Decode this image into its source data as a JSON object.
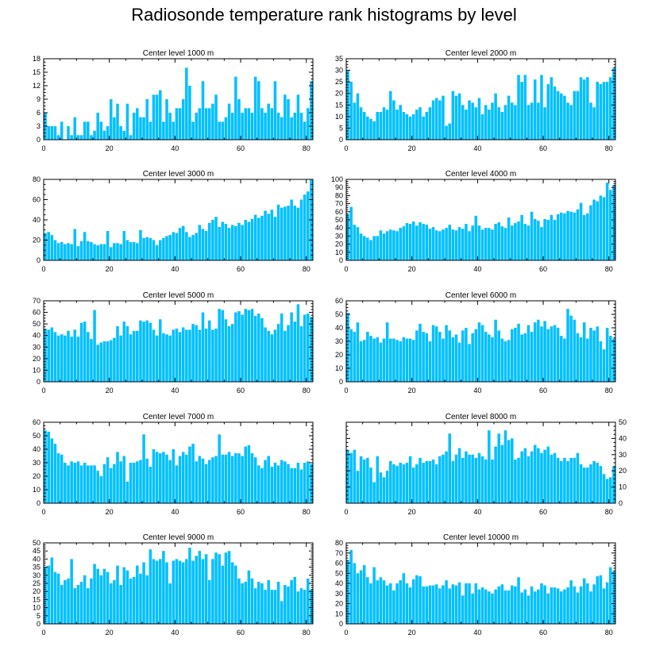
{
  "title": "Radiosonde temperature rank histograms by level",
  "colors": {
    "bar": "#00c0ff",
    "axis": "#000000"
  },
  "chart_data": [
    {
      "type": "bar",
      "title": "Center level 1000 m",
      "xlim": [
        0,
        82
      ],
      "ylim": [
        0,
        18
      ],
      "xticks": [
        0,
        20,
        40,
        60,
        80
      ],
      "yticks": [
        0,
        3,
        6,
        9,
        12,
        15,
        18
      ],
      "ytick_side": "left",
      "values": [
        6,
        3,
        3,
        3,
        1,
        4,
        0,
        3,
        1,
        5,
        1,
        1,
        4,
        4,
        1,
        2,
        6,
        4,
        2,
        3,
        9,
        5,
        8,
        3,
        2,
        8,
        1,
        6,
        7,
        5,
        5,
        9,
        4,
        10,
        10,
        11,
        4,
        9,
        6,
        4,
        7,
        7,
        9,
        16,
        12,
        4,
        6,
        7,
        13,
        7,
        7,
        8,
        10,
        4,
        4,
        5,
        8,
        6,
        14,
        9,
        6,
        7,
        7,
        6,
        14,
        13,
        7,
        6,
        8,
        7,
        13,
        6,
        5,
        10,
        9,
        5,
        6,
        10,
        6,
        4,
        7,
        13
      ]
    },
    {
      "type": "bar",
      "title": "Center level 2000 m",
      "xlim": [
        0,
        82
      ],
      "ylim": [
        0,
        35
      ],
      "xticks": [
        0,
        20,
        40,
        60,
        80
      ],
      "yticks": [
        0,
        5,
        10,
        15,
        20,
        25,
        30,
        35
      ],
      "ytick_side": "left",
      "values": [
        30,
        25,
        16,
        20,
        14,
        12,
        10,
        9,
        8,
        12,
        12,
        14,
        13,
        21,
        17,
        13,
        15,
        12,
        11,
        10,
        11,
        13,
        14,
        10,
        12,
        14,
        17,
        18,
        17,
        19,
        6,
        7,
        21,
        19,
        20,
        15,
        13,
        17,
        16,
        14,
        18,
        11,
        15,
        13,
        16,
        20,
        14,
        12,
        15,
        19,
        16,
        15,
        28,
        25,
        28,
        15,
        16,
        26,
        16,
        28,
        14,
        24,
        27,
        23,
        21,
        20,
        19,
        16,
        15,
        21,
        21,
        27,
        26,
        27,
        16,
        14,
        25,
        24,
        25,
        25,
        27,
        31
      ]
    },
    {
      "type": "bar",
      "title": "Center level 3000 m",
      "xlim": [
        0,
        82
      ],
      "ylim": [
        0,
        80
      ],
      "xticks": [
        0,
        20,
        40,
        60,
        80
      ],
      "yticks": [
        0,
        20,
        40,
        60,
        80
      ],
      "ytick_side": "left",
      "values": [
        27,
        28,
        25,
        20,
        17,
        18,
        16,
        17,
        16,
        31,
        14,
        19,
        28,
        19,
        18,
        16,
        15,
        16,
        16,
        29,
        13,
        17,
        17,
        16,
        29,
        20,
        18,
        18,
        17,
        30,
        22,
        23,
        22,
        20,
        15,
        20,
        22,
        24,
        25,
        28,
        27,
        32,
        34,
        28,
        23,
        25,
        27,
        35,
        31,
        29,
        37,
        40,
        43,
        33,
        38,
        36,
        32,
        35,
        34,
        37,
        35,
        40,
        38,
        41,
        45,
        42,
        44,
        49,
        46,
        50,
        43,
        55,
        52,
        53,
        54,
        60,
        54,
        52,
        60,
        65,
        68,
        80
      ]
    },
    {
      "type": "bar",
      "title": "Center level 4000 m",
      "xlim": [
        0,
        82
      ],
      "ylim": [
        0,
        100
      ],
      "xticks": [
        0,
        20,
        40,
        60,
        80
      ],
      "yticks": [
        0,
        10,
        20,
        30,
        40,
        50,
        60,
        70,
        80,
        90,
        100
      ],
      "ytick_side": "left",
      "values": [
        57,
        66,
        44,
        41,
        33,
        30,
        28,
        25,
        30,
        30,
        37,
        33,
        36,
        38,
        37,
        36,
        40,
        42,
        46,
        45,
        48,
        43,
        47,
        45,
        44,
        39,
        41,
        37,
        36,
        38,
        40,
        44,
        38,
        37,
        41,
        39,
        45,
        36,
        43,
        55,
        43,
        38,
        40,
        40,
        38,
        45,
        47,
        42,
        40,
        53,
        43,
        46,
        48,
        56,
        45,
        43,
        60,
        51,
        49,
        41,
        51,
        50,
        56,
        50,
        57,
        59,
        58,
        61,
        60,
        59,
        63,
        71,
        56,
        58,
        68,
        75,
        73,
        80,
        78,
        96,
        87,
        93
      ]
    },
    {
      "type": "bar",
      "title": "Center level 5000 m",
      "xlim": [
        0,
        82
      ],
      "ylim": [
        0,
        70
      ],
      "xticks": [
        0,
        20,
        40,
        60,
        80
      ],
      "yticks": [
        0,
        10,
        20,
        30,
        40,
        50,
        60,
        70
      ],
      "ytick_side": "left",
      "values": [
        46,
        45,
        47,
        43,
        40,
        41,
        40,
        44,
        39,
        45,
        39,
        51,
        52,
        43,
        37,
        62,
        32,
        34,
        35,
        35,
        36,
        38,
        48,
        40,
        52,
        48,
        41,
        44,
        44,
        53,
        52,
        53,
        51,
        45,
        40,
        54,
        42,
        41,
        40,
        45,
        46,
        43,
        47,
        45,
        45,
        50,
        49,
        45,
        60,
        46,
        53,
        45,
        46,
        63,
        62,
        54,
        48,
        50,
        60,
        61,
        58,
        63,
        62,
        63,
        57,
        59,
        55,
        47,
        44,
        41,
        45,
        50,
        59,
        44,
        49,
        60,
        52,
        67,
        48,
        58,
        59,
        56
      ]
    },
    {
      "type": "bar",
      "title": "Center level 6000 m",
      "xlim": [
        0,
        82
      ],
      "ylim": [
        0,
        60
      ],
      "xticks": [
        0,
        20,
        40,
        60,
        80
      ],
      "yticks": [
        0,
        10,
        20,
        30,
        40,
        50,
        60
      ],
      "ytick_side": "left",
      "values": [
        51,
        39,
        37,
        44,
        30,
        31,
        37,
        34,
        32,
        33,
        29,
        32,
        44,
        32,
        32,
        31,
        30,
        33,
        32,
        32,
        31,
        38,
        43,
        37,
        36,
        30,
        42,
        41,
        37,
        32,
        42,
        38,
        33,
        35,
        29,
        38,
        40,
        28,
        36,
        39,
        44,
        42,
        37,
        35,
        33,
        46,
        38,
        32,
        30,
        31,
        39,
        40,
        43,
        35,
        36,
        42,
        37,
        44,
        46,
        41,
        45,
        39,
        41,
        42,
        40,
        34,
        32,
        54,
        49,
        46,
        36,
        33,
        44,
        32,
        40,
        38,
        41,
        30,
        24,
        40,
        34,
        32
      ]
    },
    {
      "type": "bar",
      "title": "Center level 7000 m",
      "xlim": [
        0,
        82
      ],
      "ylim": [
        0,
        60
      ],
      "xticks": [
        0,
        20,
        40,
        60,
        80
      ],
      "yticks": [
        0,
        10,
        20,
        30,
        40,
        50,
        60
      ],
      "ytick_side": "left",
      "values": [
        54,
        53,
        48,
        44,
        37,
        36,
        30,
        28,
        31,
        30,
        31,
        28,
        30,
        28,
        28,
        28,
        24,
        20,
        29,
        34,
        26,
        29,
        38,
        31,
        35,
        16,
        30,
        30,
        31,
        32,
        51,
        33,
        27,
        40,
        38,
        37,
        38,
        36,
        32,
        40,
        28,
        35,
        38,
        36,
        42,
        44,
        31,
        35,
        33,
        29,
        32,
        34,
        35,
        51,
        36,
        36,
        38,
        35,
        37,
        37,
        35,
        42,
        43,
        37,
        34,
        28,
        26,
        32,
        35,
        27,
        30,
        28,
        32,
        31,
        29,
        26,
        26,
        30,
        25,
        30,
        31,
        29
      ]
    },
    {
      "type": "bar",
      "title": "Center level 8000 m",
      "xlim": [
        0,
        82
      ],
      "ylim": [
        0,
        50
      ],
      "xticks": [
        0,
        20,
        40,
        60,
        80
      ],
      "yticks": [
        0,
        10,
        20,
        30,
        40,
        50
      ],
      "ytick_side": "right",
      "values": [
        33,
        31,
        33,
        20,
        29,
        27,
        28,
        22,
        13,
        29,
        19,
        16,
        20,
        26,
        24,
        23,
        25,
        24,
        25,
        29,
        22,
        24,
        28,
        25,
        26,
        26,
        27,
        24,
        29,
        30,
        32,
        43,
        26,
        30,
        34,
        28,
        32,
        30,
        30,
        28,
        31,
        29,
        27,
        45,
        27,
        35,
        43,
        36,
        45,
        39,
        40,
        27,
        28,
        32,
        34,
        29,
        32,
        36,
        34,
        31,
        33,
        35,
        30,
        31,
        28,
        26,
        28,
        26,
        28,
        28,
        31,
        24,
        22,
        22,
        24,
        26,
        25,
        23,
        18,
        15,
        16,
        23
      ]
    },
    {
      "type": "bar",
      "title": "Center level 9000 m",
      "xlim": [
        0,
        82
      ],
      "ylim": [
        0,
        50
      ],
      "xticks": [
        0,
        20,
        40,
        60,
        80
      ],
      "yticks": [
        0,
        5,
        10,
        15,
        20,
        25,
        30,
        35,
        40,
        45,
        50
      ],
      "ytick_side": "left",
      "values": [
        35,
        36,
        41,
        32,
        31,
        24,
        27,
        28,
        40,
        22,
        24,
        26,
        30,
        22,
        28,
        37,
        34,
        30,
        34,
        32,
        25,
        27,
        36,
        24,
        35,
        33,
        28,
        29,
        36,
        31,
        38,
        30,
        46,
        40,
        39,
        40,
        45,
        38,
        25,
        39,
        40,
        39,
        38,
        40,
        47,
        39,
        42,
        45,
        40,
        43,
        27,
        40,
        44,
        43,
        36,
        44,
        45,
        38,
        36,
        28,
        25,
        26,
        33,
        28,
        22,
        26,
        25,
        21,
        27,
        21,
        21,
        26,
        14,
        24,
        23,
        27,
        29,
        20,
        22,
        21,
        28,
        21
      ]
    },
    {
      "type": "bar",
      "title": "Center level 10000 m",
      "xlim": [
        0,
        82
      ],
      "ylim": [
        0,
        80
      ],
      "xticks": [
        0,
        20,
        40,
        60,
        80
      ],
      "yticks": [
        0,
        10,
        20,
        30,
        40,
        50,
        60,
        70,
        80
      ],
      "ytick_side": "left",
      "values": [
        63,
        73,
        60,
        50,
        53,
        58,
        46,
        40,
        56,
        43,
        46,
        43,
        38,
        40,
        33,
        40,
        43,
        50,
        40,
        36,
        44,
        48,
        47,
        37,
        37,
        38,
        38,
        39,
        35,
        38,
        43,
        35,
        39,
        38,
        41,
        28,
        40,
        40,
        30,
        40,
        34,
        36,
        34,
        32,
        30,
        34,
        37,
        39,
        33,
        33,
        38,
        37,
        46,
        31,
        34,
        28,
        37,
        32,
        34,
        40,
        38,
        30,
        36,
        36,
        35,
        32,
        34,
        36,
        43,
        37,
        31,
        37,
        45,
        40,
        32,
        39,
        47,
        48,
        35,
        41,
        56,
        52
      ]
    }
  ]
}
